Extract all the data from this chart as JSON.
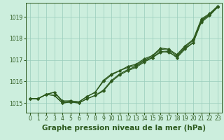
{
  "background_color": "#cceedd",
  "grid_color": "#99ccbb",
  "line_color": "#2d5a1e",
  "marker_color": "#2d5a1e",
  "xlabel": "Graphe pression niveau de la mer (hPa)",
  "xlabel_fontsize": 7.5,
  "xlim": [
    -0.5,
    23.5
  ],
  "ylim": [
    1014.55,
    1019.65
  ],
  "yticks": [
    1015,
    1016,
    1017,
    1018,
    1019
  ],
  "xticks": [
    0,
    1,
    2,
    3,
    4,
    5,
    6,
    7,
    8,
    9,
    10,
    11,
    12,
    13,
    14,
    15,
    16,
    17,
    18,
    19,
    20,
    21,
    22,
    23
  ],
  "series": [
    [
      1015.2,
      1015.2,
      1015.4,
      1015.35,
      1015.0,
      1015.05,
      1015.0,
      1015.2,
      1015.35,
      1015.55,
      1016.0,
      1016.3,
      1016.5,
      1016.65,
      1016.9,
      1017.1,
      1017.35,
      1017.4,
      1017.1,
      1017.5,
      1017.8,
      1018.8,
      1019.1,
      1019.45
    ],
    [
      1015.2,
      1015.2,
      1015.4,
      1015.35,
      1015.0,
      1015.05,
      1015.0,
      1015.2,
      1015.35,
      1015.6,
      1016.05,
      1016.35,
      1016.55,
      1016.7,
      1016.95,
      1017.1,
      1017.4,
      1017.35,
      1017.15,
      1017.55,
      1017.8,
      1018.75,
      1019.05,
      1019.45
    ],
    [
      1015.2,
      1015.2,
      1015.4,
      1015.5,
      1015.05,
      1015.1,
      1015.05,
      1015.3,
      1015.5,
      1016.0,
      1016.3,
      1016.5,
      1016.65,
      1016.75,
      1017.0,
      1017.15,
      1017.5,
      1017.45,
      1017.2,
      1017.6,
      1017.9,
      1018.85,
      1019.1,
      1019.5
    ],
    [
      1015.2,
      1015.2,
      1015.4,
      1015.5,
      1015.1,
      1015.1,
      1015.05,
      1015.3,
      1015.5,
      1016.05,
      1016.35,
      1016.5,
      1016.7,
      1016.8,
      1017.05,
      1017.2,
      1017.55,
      1017.5,
      1017.25,
      1017.65,
      1017.95,
      1018.9,
      1019.15,
      1019.5
    ]
  ]
}
